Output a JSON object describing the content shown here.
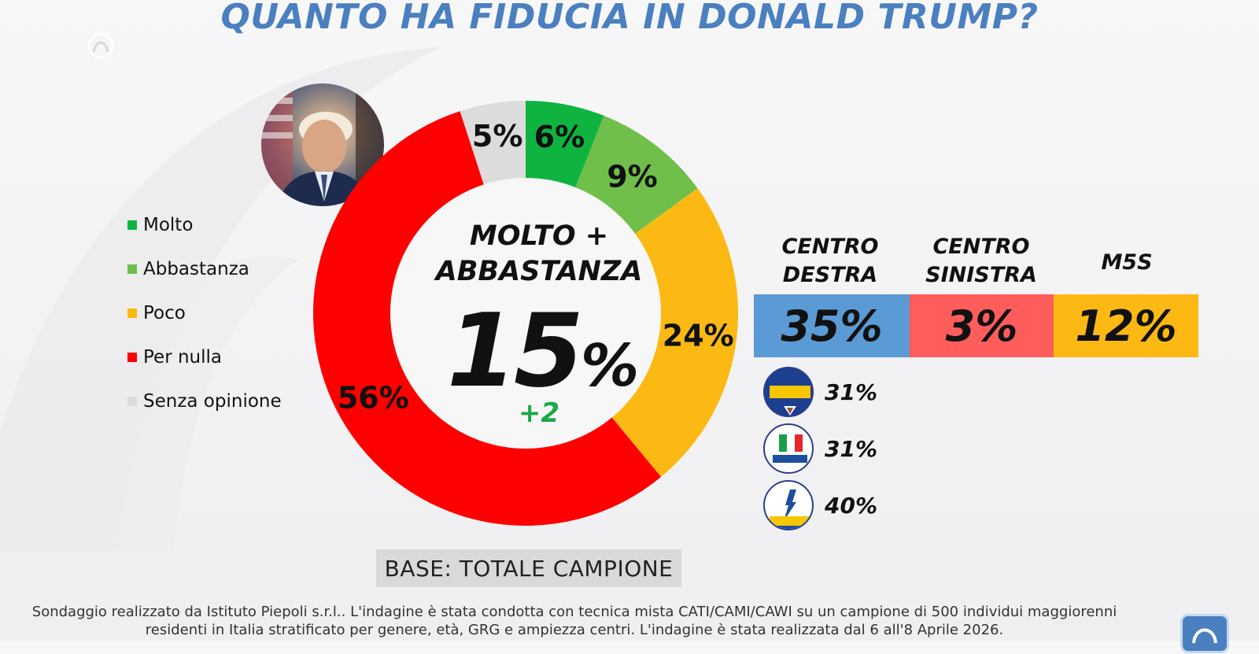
{
  "title": "QUANTO HA FIDUCIA IN DONALD TRUMP?",
  "colors": {
    "title": "#4a7fc0",
    "molto": "#0fb440",
    "abbastanza": "#6fbf4a",
    "poco": "#fdb913",
    "per_nulla": "#ff0000",
    "senza_opinione": "#dcdcdc",
    "centro_destra": "#5b9bd5",
    "centro_sinistra": "#ff5c5c",
    "m5s": "#fdb913",
    "delta": "#19a84a"
  },
  "chart_data": [
    {
      "type": "pie",
      "categories": [
        "Molto",
        "Abbastanza",
        "Poco",
        "Per nulla",
        "Senza opinione"
      ],
      "values": [
        6,
        9,
        24,
        56,
        5
      ],
      "data_labels": [
        "6%",
        "9%",
        "24%",
        "56%",
        "5%"
      ],
      "legend": [
        "Molto",
        "Abbastanza",
        "Poco",
        "Per nulla",
        "Senza opinione"
      ],
      "legend_placement": "left",
      "center": {
        "label_line1": "MOLTO +",
        "label_line2": "ABBASTANZA",
        "value": "15",
        "unit": "%",
        "delta": "+2"
      }
    },
    {
      "type": "bar",
      "categories": [
        "CENTRO DESTRA",
        "CENTRO SINISTRA",
        "M5S"
      ],
      "headers": [
        [
          "CENTRO",
          "DESTRA"
        ],
        [
          "CENTRO",
          "SINISTRA"
        ],
        [
          "M5S"
        ]
      ],
      "values": [
        35,
        3,
        12
      ],
      "data_labels": [
        "35%",
        "3%",
        "12%"
      ]
    },
    {
      "type": "table",
      "rows": [
        {
          "party_logo": "fratelli-d-italia-logo",
          "value": "31%"
        },
        {
          "party_logo": "forza-italia-logo",
          "value": "31%"
        },
        {
          "party_logo": "lega-logo",
          "value": "40%"
        }
      ]
    }
  ],
  "base": "BASE: TOTALE CAMPIONE",
  "footer": {
    "line1": "Sondaggio realizzato da Istituto Piepoli s.r.l.. L'indagine è stata condotta con tecnica mista CATI/CAMI/CAWI su un campione di 500 individui maggiorenni",
    "line2": "residenti in Italia stratificato per genere, età, GRG e ampiezza centri. L'indagine è stata realizzata dal 6 all'8 Aprile 2026."
  }
}
